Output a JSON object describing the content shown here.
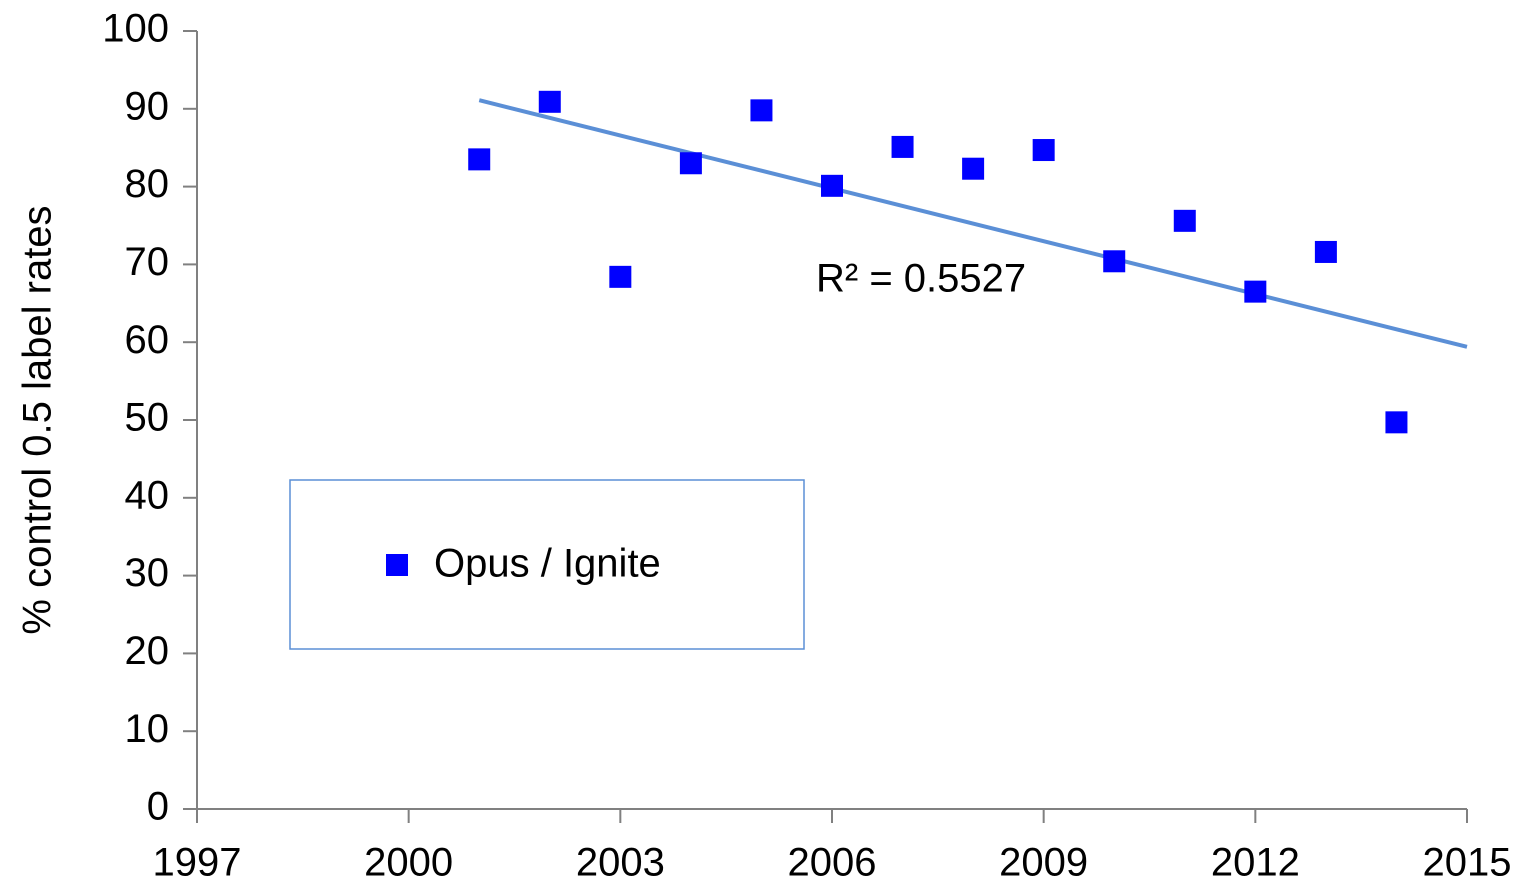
{
  "chart_data": {
    "type": "scatter",
    "y_label": "% control 0.5 label rates",
    "series": [
      {
        "name": "Opus / Ignite",
        "color": "#0000ff",
        "x": [
          2001,
          2002,
          2003,
          2004,
          2005,
          2006,
          2007,
          2008,
          2009,
          2010,
          2011,
          2012,
          2013,
          2014
        ],
        "values": [
          83.5,
          90.9,
          68.4,
          83.0,
          89.8,
          80.1,
          85.1,
          82.3,
          84.7,
          70.4,
          75.6,
          66.5,
          71.6,
          49.7
        ]
      }
    ],
    "trendline": {
      "color": "#5b8fd6",
      "x": [
        2001,
        2015
      ],
      "values": [
        91.1,
        59.4
      ]
    },
    "annotation": "R² = 0.5527",
    "xlim": [
      1997,
      2015
    ],
    "xticks": [
      1997,
      2000,
      2003,
      2006,
      2009,
      2012,
      2015
    ],
    "ylim": [
      0,
      100
    ],
    "yticks": [
      0,
      10,
      20,
      30,
      40,
      50,
      60,
      70,
      80,
      90,
      100
    ]
  }
}
